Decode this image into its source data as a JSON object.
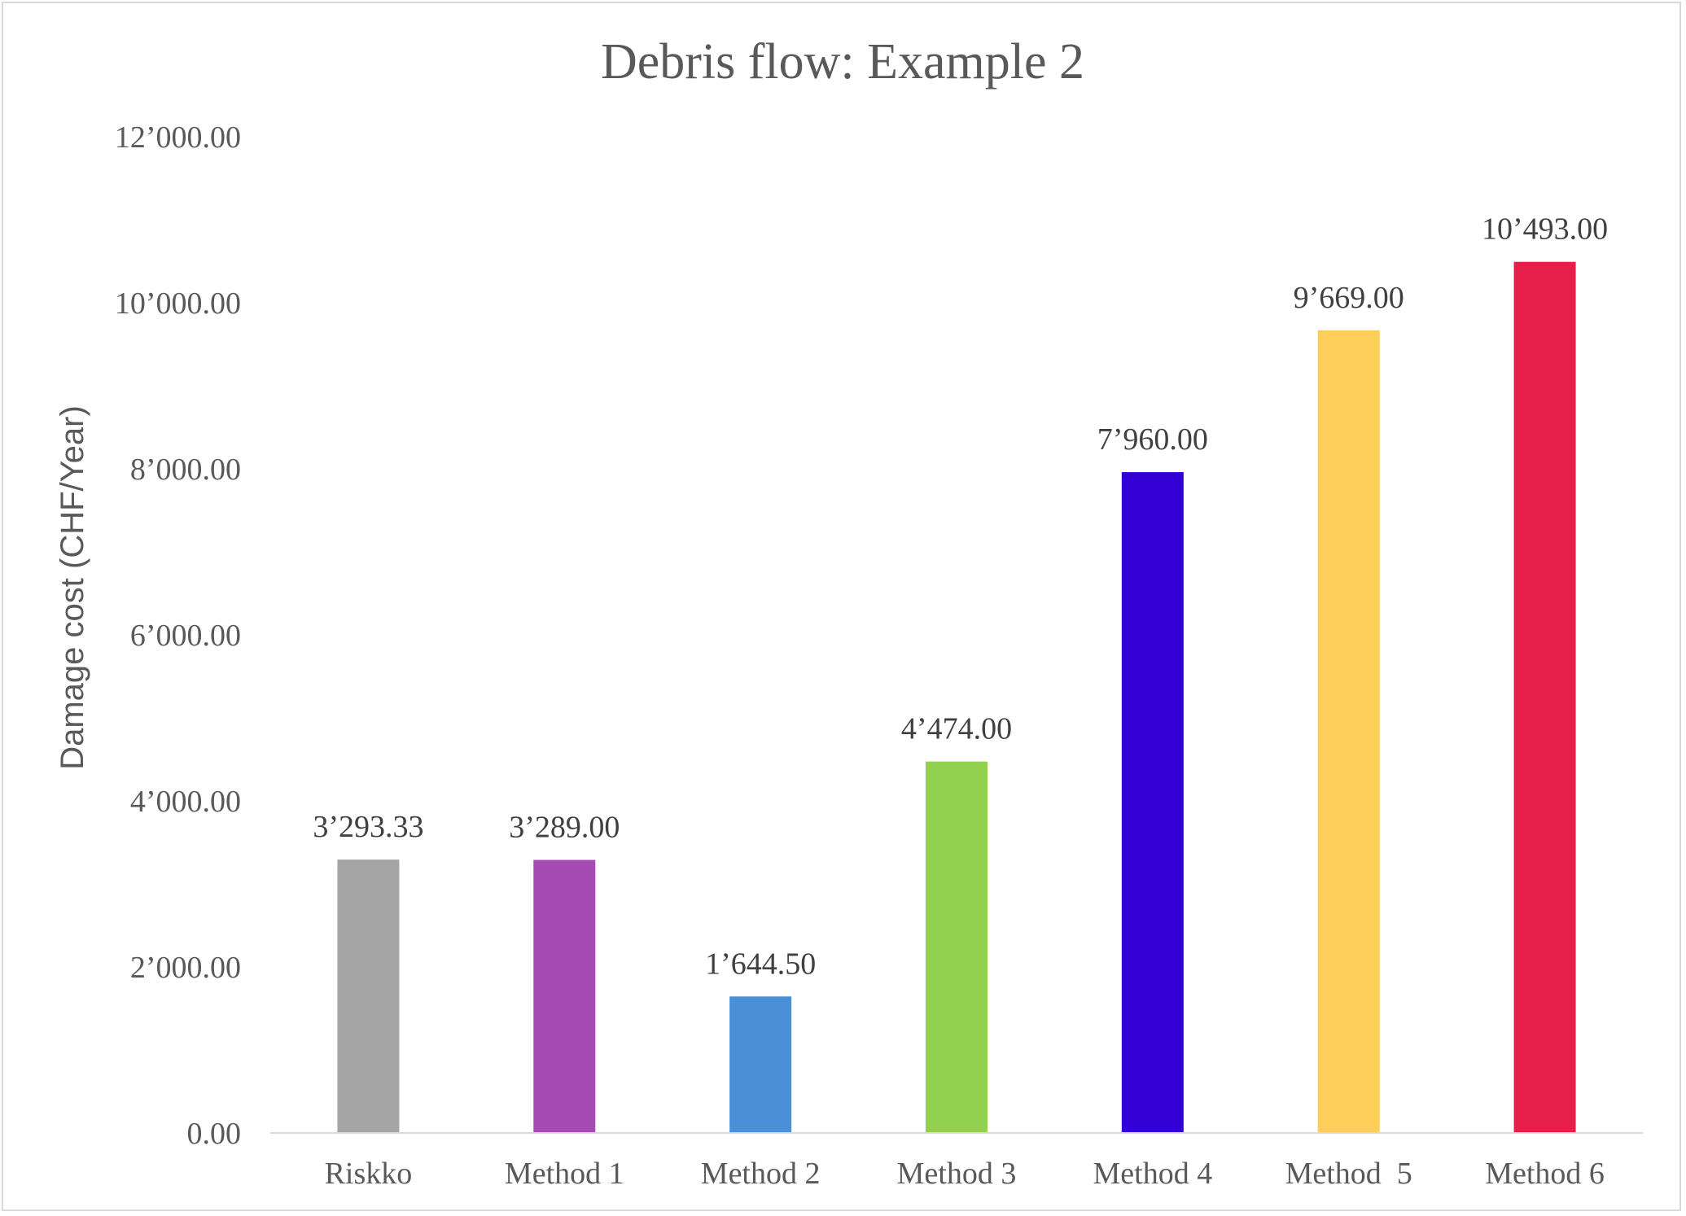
{
  "chart_data": {
    "type": "bar",
    "title": "Debris flow: Example 2",
    "xlabel": "",
    "ylabel": "Damage cost (CHF/Year)",
    "ylim": [
      0,
      12000
    ],
    "ytick_values": [
      0,
      2000,
      4000,
      6000,
      8000,
      10000,
      12000
    ],
    "ytick_labels": [
      "0.00",
      "2’000.00",
      "4’000.00",
      "6’000.00",
      "8’000.00",
      "10’000.00",
      "12’000.00"
    ],
    "grid": false,
    "legend": "none",
    "categories": [
      "Riskko",
      "Method 1",
      "Method 2",
      "Method 3",
      "Method 4",
      "Method  5",
      "Method 6"
    ],
    "values": [
      3293.33,
      3289.0,
      1644.5,
      4474.0,
      7960.0,
      9669.0,
      10493.0
    ],
    "data_labels": [
      "3’293.33",
      "3’289.00",
      "1’644.50",
      "4’474.00",
      "7’960.00",
      "9’669.00",
      "10’493.00"
    ],
    "colors": [
      "#a5a5a5",
      "#a64bb4",
      "#4a90d9",
      "#92d050",
      "#3300d6",
      "#ffcd5a",
      "#e61e4a"
    ],
    "axis_color": "#d9d9d9"
  }
}
